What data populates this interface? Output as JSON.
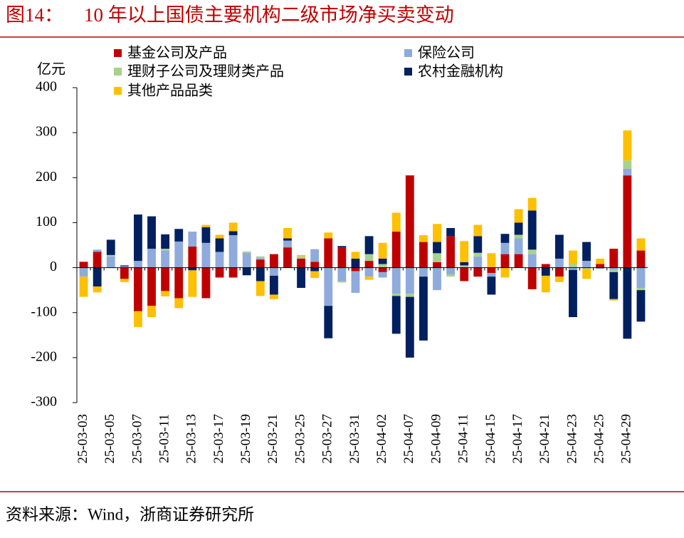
{
  "chart_data": {
    "type": "stacked_bar",
    "figure_label": "图14：",
    "title": "10 年以上国债主要机构二级市场净买卖变动",
    "y_label": "亿元",
    "source": "资料来源：Wind，浙商证券研究所",
    "categories": [
      "25-03-03",
      null,
      "25-03-05",
      null,
      "25-03-07",
      null,
      "25-03-11",
      null,
      "25-03-13",
      null,
      "25-03-17",
      null,
      "25-03-19",
      null,
      "25-03-21",
      null,
      "25-03-25",
      null,
      "25-03-27",
      null,
      "25-03-31",
      null,
      "25-04-02",
      null,
      "25-04-07",
      null,
      "25-04-09",
      null,
      "25-04-11",
      null,
      "25-04-15",
      null,
      "25-04-17",
      null,
      "25-04-21",
      null,
      "25-04-23",
      null,
      "25-04-25",
      null,
      "25-04-29",
      null
    ],
    "series": [
      {
        "name": "基金公司及产品",
        "color": "#c00000",
        "values": [
          13,
          35,
          0,
          -25,
          -97,
          -85,
          -52,
          -68,
          47,
          -68,
          -22,
          -22,
          0,
          18,
          30,
          45,
          20,
          13,
          65,
          45,
          -8,
          15,
          -10,
          80,
          205,
          57,
          12,
          70,
          -30,
          -20,
          -12,
          30,
          30,
          -48,
          8,
          -20,
          0,
          0,
          8,
          42,
          205,
          38
        ]
      },
      {
        "name": "保险公司",
        "color": "#8faadc",
        "values": [
          -20,
          5,
          25,
          3,
          15,
          42,
          38,
          58,
          33,
          55,
          35,
          72,
          33,
          3,
          -18,
          15,
          0,
          28,
          -85,
          -30,
          -48,
          -20,
          -12,
          -58,
          -58,
          -20,
          -50,
          -15,
          0,
          25,
          -8,
          25,
          35,
          30,
          0,
          20,
          -5,
          15,
          -3,
          -5,
          15,
          -45
        ]
      },
      {
        "name": "理财子公司及理财类产品",
        "color": "#a9d18e",
        "values": [
          0,
          0,
          3,
          0,
          0,
          0,
          4,
          0,
          0,
          0,
          0,
          0,
          3,
          4,
          0,
          0,
          5,
          0,
          0,
          -3,
          0,
          15,
          8,
          -5,
          -7,
          0,
          20,
          -5,
          5,
          8,
          0,
          0,
          8,
          10,
          0,
          0,
          8,
          -3,
          0,
          -5,
          18,
          -5
        ]
      },
      {
        "name": "农村金融机构",
        "color": "#002060",
        "values": [
          0,
          -42,
          34,
          2,
          103,
          72,
          32,
          28,
          -6,
          35,
          30,
          9,
          -17,
          -30,
          -42,
          5,
          -45,
          -8,
          -72,
          3,
          20,
          40,
          12,
          -84,
          -135,
          -142,
          25,
          18,
          7,
          37,
          -40,
          20,
          27,
          87,
          -18,
          53,
          -105,
          42,
          0,
          -60,
          -158,
          -70
        ]
      },
      {
        "name": "其他产品品类",
        "color": "#ffc000",
        "values": [
          -45,
          -13,
          0,
          -7,
          -35,
          -25,
          -12,
          -22,
          -59,
          5,
          8,
          19,
          0,
          -33,
          -10,
          23,
          3,
          -15,
          13,
          0,
          15,
          -7,
          35,
          42,
          0,
          15,
          40,
          0,
          47,
          25,
          32,
          -22,
          30,
          28,
          -37,
          -12,
          30,
          -22,
          12,
          -3,
          67,
          27
        ]
      }
    ],
    "ylim": [
      -300,
      400
    ],
    "yticks": [
      -300,
      -200,
      -100,
      0,
      100,
      200,
      300,
      400
    ]
  }
}
